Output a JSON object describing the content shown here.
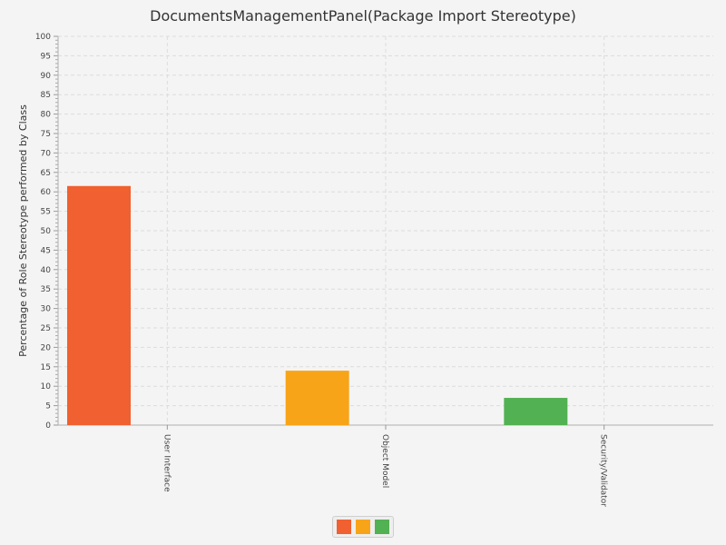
{
  "chart_data": {
    "type": "bar",
    "title": "DocumentsManagementPanel(Package Import Stereotype)",
    "ylabel": "Percentage of Role Stereotype performed by Class",
    "xlabel": "",
    "categories": [
      "User Interface",
      "Object Model",
      "Security/Validator"
    ],
    "values": [
      61.5,
      14,
      7
    ],
    "colors": [
      "#f06030",
      "#f8a418",
      "#52b152"
    ],
    "ylim": [
      0,
      100
    ],
    "y_major_step": 5,
    "y_minor_step": 1,
    "grid": true,
    "legend": {
      "placement": "bottom-center",
      "show_labels": false
    }
  }
}
